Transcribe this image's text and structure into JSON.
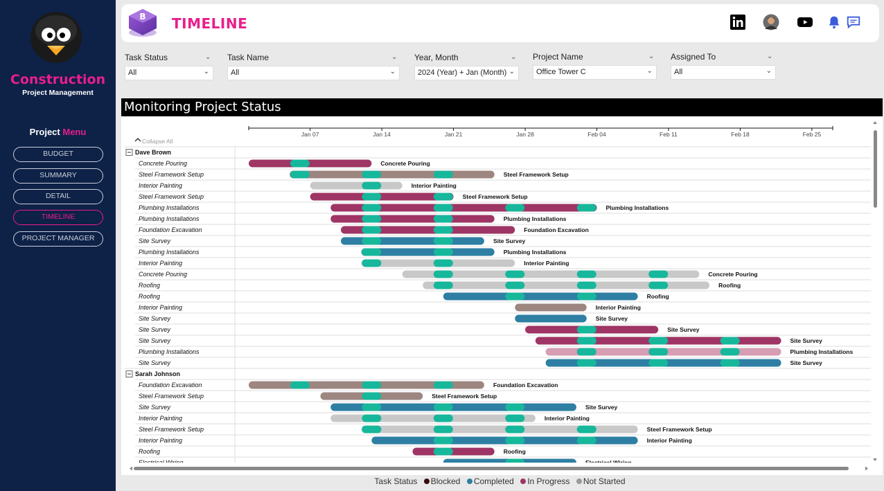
{
  "sidebar": {
    "brand_title": "Construction",
    "brand_subtitle": "Project Management",
    "menu_title_1": "Project",
    "menu_title_2": "Menu",
    "menu_items": [
      {
        "label": "BUDGET",
        "active": false
      },
      {
        "label": "SUMMARY",
        "active": false
      },
      {
        "label": "DETAIL",
        "active": false
      },
      {
        "label": "TIMELINE",
        "active": true
      },
      {
        "label": "PROJECT MANAGER",
        "active": false
      }
    ]
  },
  "header": {
    "title": "TIMELINE",
    "icons": [
      "linkedin-icon",
      "avatar",
      "youtube-icon",
      "bell-icon",
      "chat-icon"
    ]
  },
  "filters": [
    {
      "label": "Task Status",
      "value": "All"
    },
    {
      "label": "Task Name",
      "value": "All"
    },
    {
      "label": "Year, Month",
      "value": "2024 (Year) + Jan (Month)"
    },
    {
      "label": "Project Name",
      "value": "Office Tower C"
    },
    {
      "label": "Assigned To",
      "value": "All"
    }
  ],
  "section_title": "Monitoring Project Status",
  "collapse_all": "Collapse All",
  "colors": {
    "Blocked": "#4a1a1a",
    "Completed": "#2e7fa3",
    "In Progress": "#9e3564",
    "Not Started": "#c8c8c8",
    "milestone": "#17b79b",
    "pink_accent": "#e91e8c",
    "sidebar_bg": "#0e2147"
  },
  "legend": {
    "title": "Task Status",
    "items": [
      {
        "label": "Blocked",
        "color": "#3a0d0d"
      },
      {
        "label": "Completed",
        "color": "#2e7fa3"
      },
      {
        "label": "In Progress",
        "color": "#9e3564"
      },
      {
        "label": "Not Started",
        "color": "#999999"
      }
    ]
  },
  "chart_data": {
    "type": "gantt",
    "x_ticks": [
      "Jan 07",
      "Jan 14",
      "Jan 21",
      "Jan 28",
      "Feb 04",
      "Feb 11",
      "Feb 18",
      "Feb 25"
    ],
    "x_range": [
      "2024-01-01",
      "2024-03-01"
    ],
    "groups": [
      {
        "name": "Dave Brown",
        "tasks": [
          {
            "name": "Concrete Pouring",
            "start": "2024-01-01",
            "end": "2024-01-13",
            "status": "In Progress"
          },
          {
            "name": "Steel Framework Setup",
            "start": "2024-01-05",
            "end": "2024-01-25",
            "status": "Blocked-Light"
          },
          {
            "name": "Interior Painting",
            "start": "2024-01-07",
            "end": "2024-01-16",
            "status": "Not Started"
          },
          {
            "name": "Steel Framework Setup",
            "start": "2024-01-07",
            "end": "2024-01-21",
            "status": "In Progress"
          },
          {
            "name": "Plumbing Installations",
            "start": "2024-01-09",
            "end": "2024-02-04",
            "status": "In Progress"
          },
          {
            "name": "Plumbing Installations",
            "start": "2024-01-09",
            "end": "2024-01-25",
            "status": "In Progress"
          },
          {
            "name": "Foundation Excavation",
            "start": "2024-01-10",
            "end": "2024-01-27",
            "status": "In Progress"
          },
          {
            "name": "Site Survey",
            "start": "2024-01-10",
            "end": "2024-01-24",
            "status": "Completed"
          },
          {
            "name": "Plumbing Installations",
            "start": "2024-01-12",
            "end": "2024-01-25",
            "status": "Completed"
          },
          {
            "name": "Interior Painting",
            "start": "2024-01-12",
            "end": "2024-01-27",
            "status": "Not Started"
          },
          {
            "name": "Concrete Pouring",
            "start": "2024-01-16",
            "end": "2024-02-14",
            "status": "Not Started"
          },
          {
            "name": "Roofing",
            "start": "2024-01-18",
            "end": "2024-02-15",
            "status": "Not Started"
          },
          {
            "name": "Roofing",
            "start": "2024-01-20",
            "end": "2024-02-08",
            "status": "Completed"
          },
          {
            "name": "Interior Painting",
            "start": "2024-01-27",
            "end": "2024-02-03",
            "status": "Blocked-Light"
          },
          {
            "name": "Site Survey",
            "start": "2024-01-27",
            "end": "2024-02-03",
            "status": "Completed"
          },
          {
            "name": "Site Survey",
            "start": "2024-01-28",
            "end": "2024-02-10",
            "status": "In Progress"
          },
          {
            "name": "Site Survey",
            "start": "2024-01-29",
            "end": "2024-02-22",
            "status": "In Progress"
          },
          {
            "name": "Plumbing Installations",
            "start": "2024-01-30",
            "end": "2024-02-22",
            "status": "In Progress-Light"
          },
          {
            "name": "Site Survey",
            "start": "2024-01-30",
            "end": "2024-02-22",
            "status": "Completed"
          }
        ]
      },
      {
        "name": "Sarah Johnson",
        "tasks": [
          {
            "name": "Foundation Excavation",
            "start": "2024-01-01",
            "end": "2024-01-24",
            "status": "Blocked-Light"
          },
          {
            "name": "Steel Framework Setup",
            "start": "2024-01-08",
            "end": "2024-01-18",
            "status": "Blocked-Light"
          },
          {
            "name": "Site Survey",
            "start": "2024-01-09",
            "end": "2024-02-02",
            "status": "Completed"
          },
          {
            "name": "Interior Painting",
            "start": "2024-01-09",
            "end": "2024-01-29",
            "status": "Not Started"
          },
          {
            "name": "Steel Framework Setup",
            "start": "2024-01-12",
            "end": "2024-02-08",
            "status": "Not Started"
          },
          {
            "name": "Interior Painting",
            "start": "2024-01-13",
            "end": "2024-02-08",
            "status": "Completed"
          },
          {
            "name": "Roofing",
            "start": "2024-01-17",
            "end": "2024-01-25",
            "status": "In Progress"
          },
          {
            "name": "Electrical Wiring",
            "start": "2024-01-20",
            "end": "2024-02-02",
            "status": "Completed"
          }
        ]
      }
    ]
  }
}
